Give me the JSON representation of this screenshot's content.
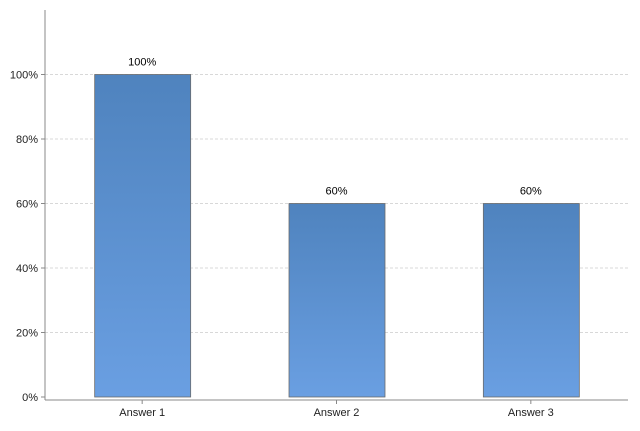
{
  "chart_data": {
    "type": "bar",
    "title": "",
    "xlabel": "",
    "ylabel": "",
    "categories": [
      "Answer 1",
      "Answer 2",
      "Answer 3"
    ],
    "values": [
      100,
      60,
      60
    ],
    "value_labels": [
      "100%",
      "60%",
      "60%"
    ],
    "ylim": [
      0,
      120
    ],
    "yticks": [
      0,
      20,
      40,
      60,
      80,
      100
    ],
    "ytick_labels": [
      "0%",
      "20%",
      "40%",
      "60%",
      "80%",
      "100%"
    ],
    "grid": true,
    "legend": "none",
    "colors": {
      "bar_top": "#4f83be",
      "bar_bottom": "#6a9fe2",
      "bar_edge": "#6b6b6b",
      "grid": "#cccccc",
      "axis": "#888888",
      "text": "#222222"
    }
  }
}
